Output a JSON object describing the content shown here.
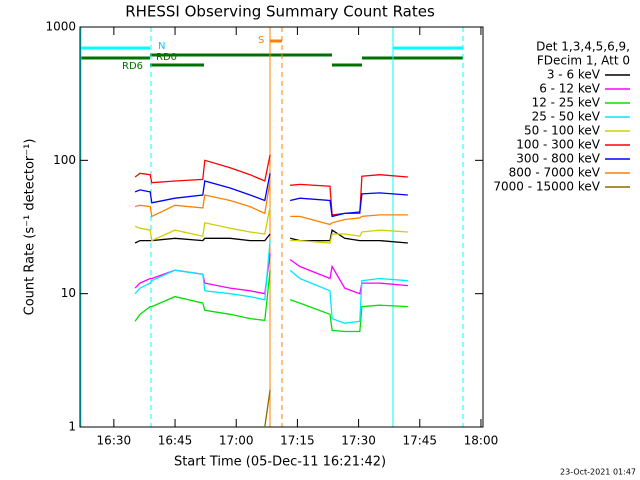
{
  "chart_data": {
    "type": "line",
    "title": "RHESSI Observing Summary Count Rates",
    "x_label": "Start Time (05-Dec-11 16:21:42)",
    "y_label": "Count Rate (s⁻¹ detector⁻¹)",
    "legend_header": [
      "Det 1,3,4,5,6,9,",
      "FDecim 1, Att 0"
    ],
    "footer": "23-Oct-2021 01:47",
    "annotations": [
      "N",
      "RD0",
      "RD6",
      "S"
    ],
    "log_y": true,
    "xlim": [
      21.7,
      120.5
    ],
    "xticks": [
      {
        "value": 30,
        "label": "16:30"
      },
      {
        "value": 45,
        "label": "16:45"
      },
      {
        "value": 60,
        "label": "17:00"
      },
      {
        "value": 75,
        "label": "17:15"
      },
      {
        "value": 90,
        "label": "17:30"
      },
      {
        "value": 105,
        "label": "17:45"
      },
      {
        "value": 120,
        "label": "18:00"
      }
    ],
    "ylim": [
      1,
      1000
    ],
    "yticks": [
      1,
      10,
      100,
      1000
    ],
    "x": [
      35.2,
      36.4,
      38.9,
      39.3,
      45.0,
      51.8,
      52.3,
      58.5,
      63.4,
      67.0,
      68.3,
      null,
      73.2,
      75.6,
      83.0,
      83.5,
      86.6,
      90.3,
      90.8,
      95.2,
      102.1
    ],
    "series": [
      {
        "name": "3 - 6 keV",
        "color": "#000000",
        "values": [
          24,
          25,
          25,
          25,
          26,
          25,
          26,
          26,
          25,
          25,
          28,
          null,
          26,
          25,
          25,
          30,
          26,
          25,
          25,
          25,
          24
        ]
      },
      {
        "name": "6 - 12 keV",
        "color": "#ff00ff",
        "values": [
          11,
          12,
          13,
          13,
          15,
          14,
          12,
          11,
          10.5,
          10,
          20,
          null,
          18,
          16,
          13,
          16,
          11,
          10,
          12,
          12,
          11.5
        ]
      },
      {
        "name": "12 - 25 keV",
        "color": "#00e000",
        "values": [
          6.2,
          7,
          8,
          8,
          9.5,
          8.5,
          7.5,
          7,
          6.5,
          6.3,
          15,
          null,
          9,
          8.5,
          7,
          5.3,
          5.2,
          5.2,
          8,
          8.2,
          8
        ]
      },
      {
        "name": "25 - 50 keV",
        "color": "#00e8ff",
        "values": [
          10,
          11,
          12,
          12.5,
          15,
          14,
          10.5,
          10,
          9.5,
          9,
          25,
          null,
          15,
          13,
          10.5,
          6.5,
          6,
          6.2,
          12.5,
          13,
          12.5
        ]
      },
      {
        "name": "50 - 100 keV",
        "color": "#d0d000",
        "values": [
          32,
          31,
          30,
          25,
          30,
          27,
          34,
          31,
          29,
          28,
          45,
          null,
          25,
          25,
          24,
          28,
          28,
          27,
          29,
          30,
          29
        ]
      },
      {
        "name": "100 - 300 keV",
        "color": "#ff0000",
        "values": [
          75,
          80,
          78,
          68,
          70,
          72,
          100,
          88,
          78,
          70,
          110,
          null,
          65,
          66,
          64,
          39,
          40,
          40,
          76,
          78,
          75
        ]
      },
      {
        "name": "300 - 800 keV",
        "color": "#0000ff",
        "values": [
          58,
          60,
          58,
          48,
          52,
          55,
          70,
          62,
          55,
          50,
          80,
          null,
          50,
          52,
          50,
          38,
          40,
          41,
          56,
          57,
          55
        ]
      },
      {
        "name": "800 - 7000 keV",
        "color": "#ff8000",
        "values": [
          45,
          46,
          45,
          38,
          46,
          44,
          55,
          50,
          45,
          40,
          70,
          null,
          38,
          38,
          33,
          34,
          36,
          37,
          38,
          39,
          39
        ]
      },
      {
        "name": "7000 - 15000 keV",
        "color": "#8b6c00",
        "values": [
          null,
          null,
          null,
          null,
          null,
          null,
          null,
          null,
          null,
          1,
          1.9,
          null,
          null,
          null,
          null,
          null,
          null,
          null,
          null,
          null,
          null
        ]
      }
    ]
  }
}
